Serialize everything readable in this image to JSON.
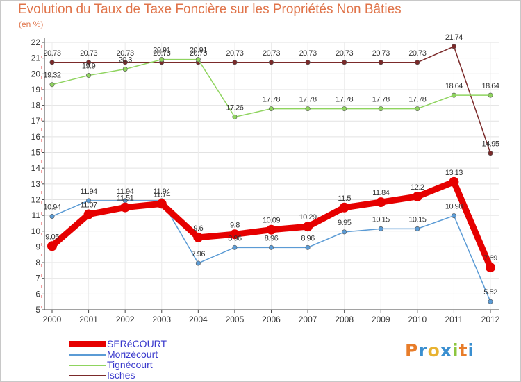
{
  "title": "Evolution du Taux de Taxe Foncière sur les Propriétés Non Bâties",
  "unit_label": "(en %)",
  "logo": {
    "text": "Proxiti",
    "letters": [
      "P",
      "r",
      "o",
      "x",
      "i",
      "t",
      "i"
    ],
    "colors": [
      "#e87d2a",
      "#3a8fd0",
      "#e8b230",
      "#3a8fd0",
      "#8cc63f",
      "#e87d2a",
      "#3a8fd0"
    ]
  },
  "chart_data": {
    "type": "line",
    "title": "Evolution du Taux de Taxe Foncière sur les Propriétés Non Bâties",
    "ylabel": "(en %)",
    "xlabel": "",
    "ylim": [
      5,
      22
    ],
    "yticks": [
      5,
      6,
      7,
      8,
      9,
      10,
      11,
      12,
      13,
      14,
      15,
      16,
      17,
      18,
      19,
      20,
      21,
      22
    ],
    "categories": [
      "2000",
      "2001",
      "2002",
      "2003",
      "2004",
      "2005",
      "2006",
      "2007",
      "2008",
      "2009",
      "2010",
      "2011",
      "2012"
    ],
    "series": [
      {
        "name": "SERéCOURT",
        "color": "#e60000",
        "style": "thick",
        "values": [
          9.05,
          11.07,
          11.51,
          11.74,
          9.6,
          9.8,
          10.09,
          10.29,
          11.5,
          11.84,
          12.2,
          13.13,
          7.69
        ],
        "labels": [
          "9.05",
          "11.07",
          "11.51",
          "11.74",
          "9.6",
          "9.8",
          "10.09",
          "10.29",
          "11.5",
          "11.84",
          "12.2",
          "13.13",
          "7.69"
        ]
      },
      {
        "name": "Morizécourt",
        "color": "#5b9bd5",
        "style": "thin",
        "values": [
          10.94,
          11.94,
          11.94,
          11.94,
          7.96,
          8.96,
          8.96,
          8.96,
          9.95,
          10.15,
          10.15,
          10.98,
          5.52
        ],
        "labels": [
          "10.94",
          "11.94",
          "11.94",
          "11.94",
          "7.96",
          "8.96",
          "8.96",
          "8.96",
          "9.95",
          "10.15",
          "10.15",
          "10.98",
          "5.52"
        ]
      },
      {
        "name": "Tignécourt",
        "color": "#8fd45f",
        "style": "thin",
        "values": [
          19.32,
          19.9,
          20.3,
          20.91,
          20.91,
          17.26,
          17.78,
          17.78,
          17.78,
          17.78,
          17.78,
          18.64,
          18.64
        ],
        "labels": [
          "19.32",
          "19.9",
          "20.3",
          "20.91",
          "20.91",
          "17.26",
          "17.78",
          "17.78",
          "17.78",
          "17.78",
          "17.78",
          "18.64",
          "18.64"
        ]
      },
      {
        "name": "Isches",
        "color": "#7b2a2a",
        "style": "thin",
        "values": [
          20.73,
          20.73,
          20.73,
          20.73,
          20.73,
          20.73,
          20.73,
          20.73,
          20.73,
          20.73,
          20.73,
          21.74,
          14.95
        ],
        "labels": [
          "20.73",
          "20.73",
          "20.73",
          "20.73",
          "20.73",
          "20.73",
          "20.73",
          "20.73",
          "20.73",
          "20.73",
          "20.73",
          "21.74",
          "14.95"
        ]
      }
    ]
  }
}
